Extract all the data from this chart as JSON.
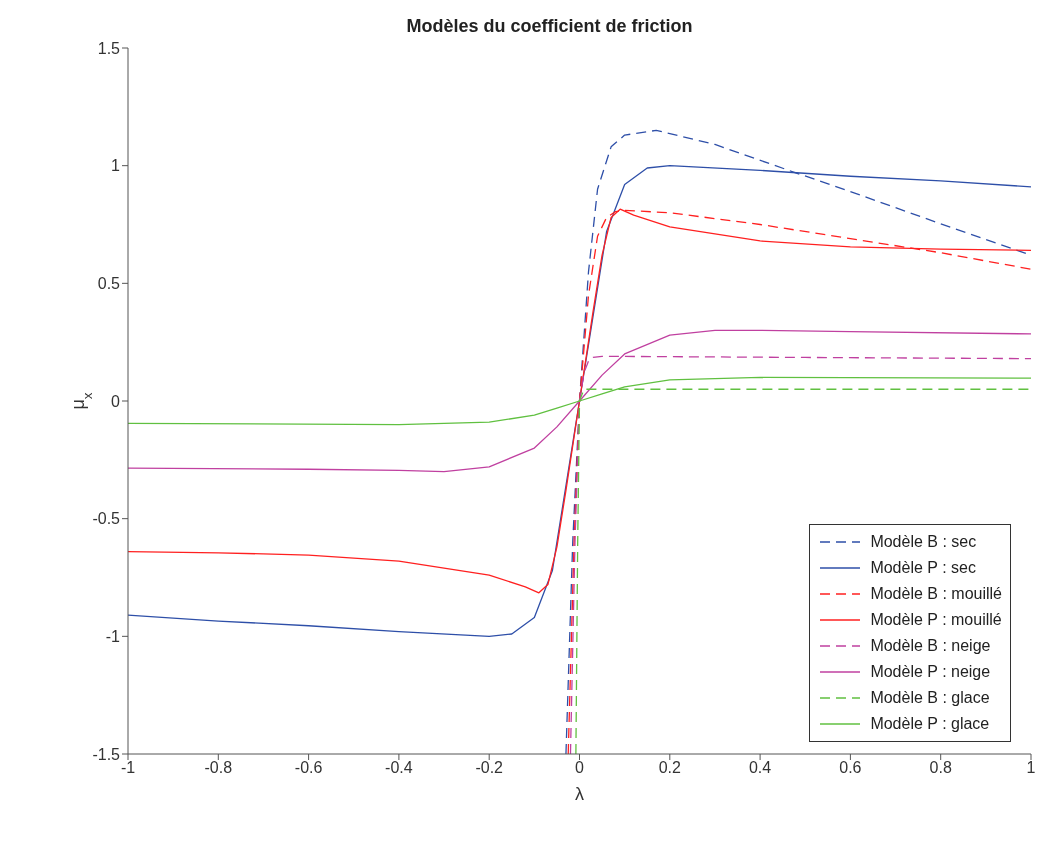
{
  "chart_data": {
    "type": "line",
    "title": "Modèles du coefficient de friction",
    "xlabel": "λ",
    "ylabel": "μ$_{x}$",
    "xlim": [
      -1,
      1
    ],
    "xticks": [
      -1,
      -0.8,
      -0.6,
      -0.4,
      -0.2,
      0,
      0.2,
      0.4,
      0.6,
      0.8,
      1
    ],
    "ylim": [
      -1.5,
      1.5
    ],
    "yticks": [
      -1.5,
      -1,
      -0.5,
      0,
      0.5,
      1,
      1.5
    ],
    "grid": false,
    "legend": "bottom right",
    "marker": "none",
    "series": [
      {
        "name": "Modèle B : sec",
        "color": "#2e4fa8",
        "line_style": "dashed",
        "x": [
          -0.03,
          -0.015,
          0,
          0.02,
          0.04,
          0.07,
          0.1,
          0.17,
          0.3,
          0.474,
          0.6,
          0.8,
          1
        ],
        "values": [
          -1.5,
          -0.6,
          0,
          0.55,
          0.9,
          1.08,
          1.13,
          1.15,
          1.09,
          0.973,
          0.89,
          0.753,
          0.62
        ]
      },
      {
        "name": "Modèle P : sec",
        "color": "#2e4fa8",
        "line_style": "solid",
        "x": [
          -1,
          -0.8,
          -0.6,
          -0.4,
          -0.2,
          -0.15,
          -0.1,
          -0.06,
          0,
          0.06,
          0.1,
          0.15,
          0.2,
          0.4,
          0.6,
          0.8,
          1
        ],
        "values": [
          -0.91,
          -0.935,
          -0.955,
          -0.98,
          -1.0,
          -0.99,
          -0.92,
          -0.72,
          0,
          0.72,
          0.92,
          0.99,
          1.0,
          0.98,
          0.955,
          0.935,
          0.91
        ]
      },
      {
        "name": "Modèle B : mouillé",
        "color": "#ff2020",
        "line_style": "dashed",
        "x": [
          -0.025,
          -0.012,
          0,
          0.02,
          0.04,
          0.06,
          0.08,
          0.1,
          0.2,
          0.4,
          0.6,
          0.8,
          1
        ],
        "values": [
          -1.5,
          -0.6,
          0,
          0.45,
          0.7,
          0.78,
          0.805,
          0.81,
          0.8,
          0.75,
          0.69,
          0.63,
          0.56
        ]
      },
      {
        "name": "Modèle P : mouillé",
        "color": "#ff2020",
        "line_style": "solid",
        "x": [
          -1,
          -0.8,
          -0.6,
          -0.4,
          -0.2,
          -0.12,
          -0.09,
          -0.07,
          -0.05,
          -0.03,
          0,
          0.03,
          0.05,
          0.07,
          0.09,
          0.12,
          0.2,
          0.4,
          0.6,
          0.8,
          1
        ],
        "values": [
          -0.64,
          -0.645,
          -0.655,
          -0.68,
          -0.74,
          -0.79,
          -0.815,
          -0.78,
          -0.62,
          -0.38,
          0,
          0.38,
          0.62,
          0.78,
          0.815,
          0.79,
          0.74,
          0.68,
          0.655,
          0.645,
          0.64
        ]
      },
      {
        "name": "Modèle B : neige",
        "color": "#c040a0",
        "line_style": "dashed",
        "x": [
          -0.02,
          -0.01,
          0,
          0.01,
          0.02,
          0.03,
          0.05,
          0.5,
          1
        ],
        "values": [
          -1.5,
          -0.6,
          0,
          0.12,
          0.17,
          0.185,
          0.19,
          0.185,
          0.18
        ]
      },
      {
        "name": "Modèle P : neige",
        "color": "#c040a0",
        "line_style": "solid",
        "x": [
          -1,
          -0.6,
          -0.4,
          -0.3,
          -0.2,
          -0.1,
          -0.05,
          0,
          0.05,
          0.1,
          0.2,
          0.3,
          0.4,
          0.6,
          1
        ],
        "values": [
          -0.285,
          -0.29,
          -0.295,
          -0.3,
          -0.28,
          -0.2,
          -0.11,
          0,
          0.11,
          0.2,
          0.28,
          0.3,
          0.3,
          0.295,
          0.285
        ]
      },
      {
        "name": "Modèle B : glace",
        "color": "#60c040",
        "line_style": "dashed",
        "x": [
          -0.008,
          -0.004,
          0,
          0.01,
          0.02,
          1
        ],
        "values": [
          -1.5,
          -0.6,
          0,
          0.05,
          0.05,
          0.05
        ]
      },
      {
        "name": "Modèle P : glace",
        "color": "#60c040",
        "line_style": "solid",
        "x": [
          -1,
          -0.4,
          -0.2,
          -0.1,
          -0.05,
          0,
          0.05,
          0.1,
          0.2,
          0.4,
          1
        ],
        "values": [
          -0.095,
          -0.1,
          -0.09,
          -0.06,
          -0.03,
          0,
          0.03,
          0.06,
          0.09,
          0.1,
          0.097
        ]
      }
    ]
  }
}
